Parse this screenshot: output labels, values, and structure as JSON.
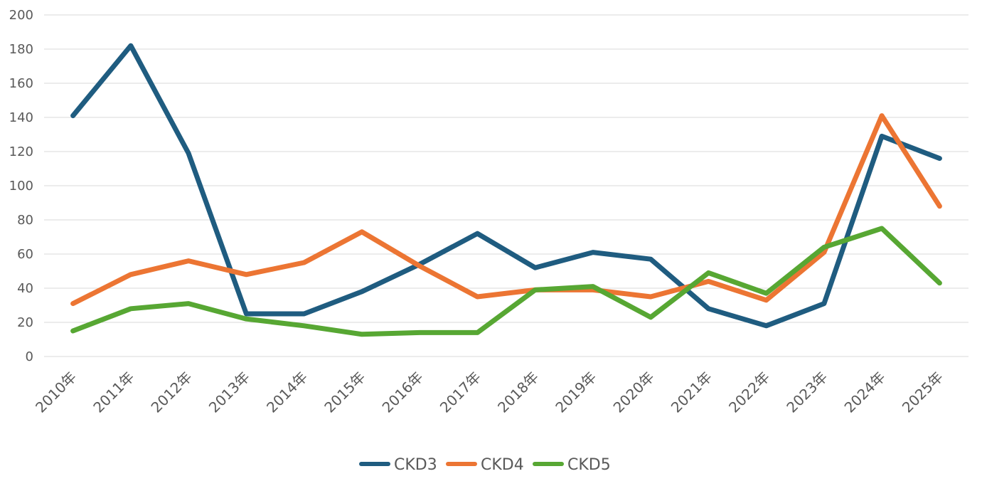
{
  "chart_data": {
    "type": "line",
    "title": "",
    "xlabel": "",
    "ylabel": "",
    "ylim": [
      0,
      200
    ],
    "yticks": [
      0,
      20,
      40,
      60,
      80,
      100,
      120,
      140,
      160,
      180,
      200
    ],
    "grid": true,
    "legend_position": "bottom",
    "categories": [
      "2010年",
      "2011年",
      "2012年",
      "2013年",
      "2014年",
      "2015年",
      "2016年",
      "2017年",
      "2018年",
      "2019年",
      "2020年",
      "2021年",
      "2022年",
      "2023年",
      "2024年",
      "2025年"
    ],
    "series": [
      {
        "name": "CKD3",
        "color": "#1f5c80",
        "values": [
          141,
          182,
          119,
          25,
          25,
          38,
          54,
          72,
          52,
          61,
          57,
          28,
          18,
          31,
          129,
          116
        ]
      },
      {
        "name": "CKD4",
        "color": "#ec7533",
        "values": [
          31,
          48,
          56,
          48,
          55,
          73,
          53,
          35,
          39,
          39,
          35,
          44,
          33,
          61,
          141,
          88
        ]
      },
      {
        "name": "CKD5",
        "color": "#57a733",
        "values": [
          15,
          28,
          31,
          22,
          18,
          13,
          14,
          14,
          39,
          41,
          23,
          49,
          37,
          64,
          75,
          43
        ]
      }
    ]
  }
}
